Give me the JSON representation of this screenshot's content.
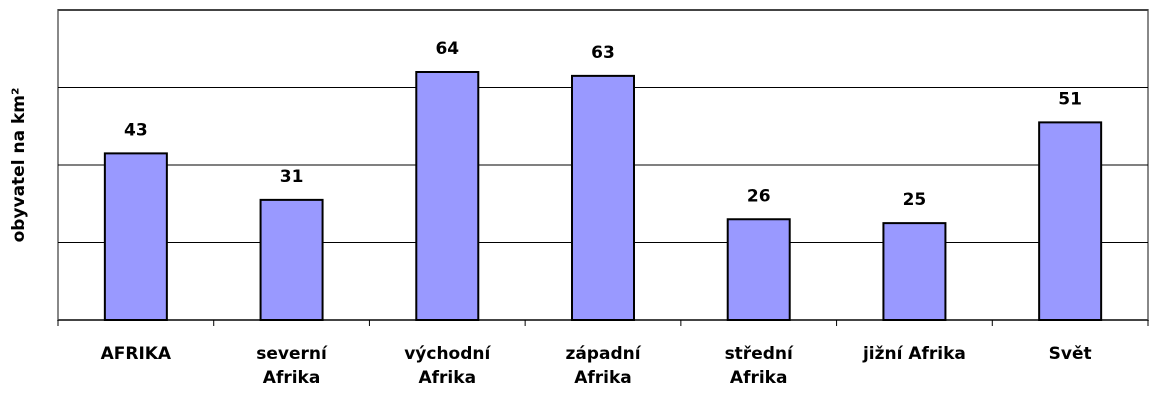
{
  "chart_data": {
    "type": "bar",
    "y_axis_label": "obyvatel na km²",
    "categories": [
      "AFRIKA",
      "severní\nAfrika",
      "východní\nAfrika",
      "západní\nAfrika",
      "střední\nAfrika",
      "jižní Afrika",
      "Svět"
    ],
    "values": [
      43,
      31,
      64,
      63,
      26,
      25,
      51
    ],
    "color": "#9999ff",
    "ylim": [
      0,
      80
    ],
    "yticks": [
      0,
      20,
      40,
      60,
      80
    ],
    "grid": true
  }
}
